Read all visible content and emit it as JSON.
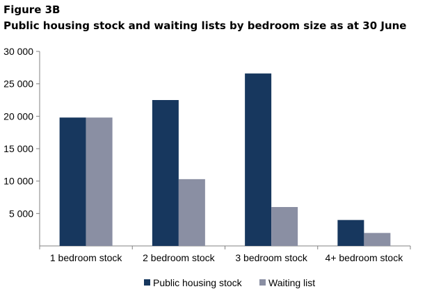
{
  "figure": {
    "label": "Figure 3B",
    "title": "Public housing stock and waiting lists by bedroom size as at 30 June"
  },
  "colors": {
    "public_housing_stock": "#17375e",
    "waiting_list": "#8a8fa3"
  },
  "chart_data": {
    "type": "bar",
    "title": "Public housing stock and waiting lists by bedroom size as at 30 June",
    "categories": [
      "1 bedroom stock",
      "2 bedroom stock",
      "3 bedroom stock",
      "4+ bedroom stock"
    ],
    "series": [
      {
        "name": "Public housing stock",
        "values": [
          19800,
          22500,
          26600,
          4000
        ]
      },
      {
        "name": "Waiting list",
        "values": [
          19800,
          10300,
          6000,
          2000
        ]
      }
    ],
    "ylim": [
      0,
      30000
    ],
    "yticks": [
      5000,
      10000,
      15000,
      20000,
      25000,
      30000
    ],
    "ytick_labels": [
      "5 000",
      "10 000",
      "15 000",
      "20 000",
      "25 000",
      "30 000"
    ],
    "xlabel": "",
    "ylabel": "",
    "grid": false,
    "legend_position": "bottom"
  }
}
